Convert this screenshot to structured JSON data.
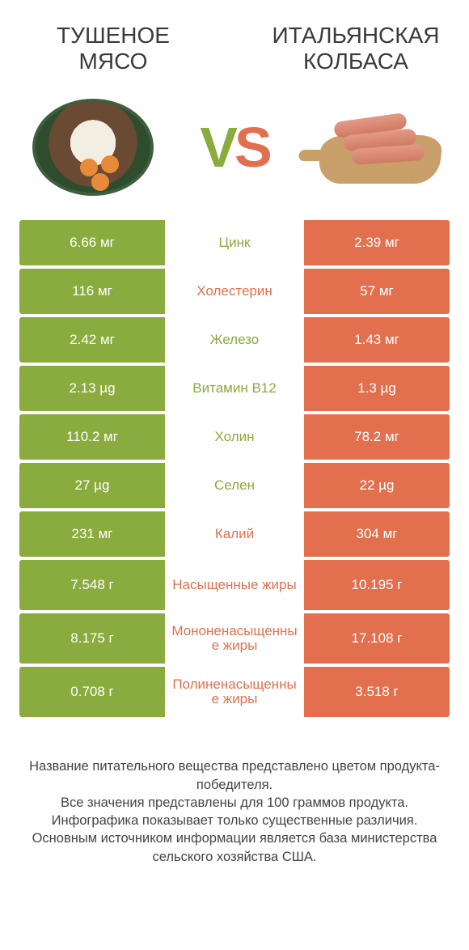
{
  "colors": {
    "left_bg": "#8aab3e",
    "right_bg": "#e2704f",
    "left_text": "#8aab3e",
    "right_text": "#e2704f",
    "cell_text": "#ffffff"
  },
  "header": {
    "left_title": "ТУШЕНОЕ МЯСО",
    "right_title": "ИТАЛЬЯНСКАЯ КОЛБАСА",
    "vs_v": "V",
    "vs_s": "S"
  },
  "rows": [
    {
      "left": "6.66 мг",
      "label": "Цинк",
      "right": "2.39 мг",
      "winner": "left",
      "tall": false
    },
    {
      "left": "116 мг",
      "label": "Холестерин",
      "right": "57 мг",
      "winner": "right",
      "tall": false
    },
    {
      "left": "2.42 мг",
      "label": "Железо",
      "right": "1.43 мг",
      "winner": "left",
      "tall": false
    },
    {
      "left": "2.13 µg",
      "label": "Витамин B12",
      "right": "1.3 µg",
      "winner": "left",
      "tall": false
    },
    {
      "left": "110.2 мг",
      "label": "Холин",
      "right": "78.2 мг",
      "winner": "left",
      "tall": false
    },
    {
      "left": "27 µg",
      "label": "Селен",
      "right": "22 µg",
      "winner": "left",
      "tall": false
    },
    {
      "left": "231 мг",
      "label": "Калий",
      "right": "304 мг",
      "winner": "right",
      "tall": false
    },
    {
      "left": "7.548 г",
      "label": "Насыщенные жиры",
      "right": "10.195 г",
      "winner": "right",
      "tall": true
    },
    {
      "left": "8.175 г",
      "label": "Мононенасыщенные жиры",
      "right": "17.108 г",
      "winner": "right",
      "tall": true
    },
    {
      "left": "0.708 г",
      "label": "Полиненасыщенные жиры",
      "right": "3.518 г",
      "winner": "right",
      "tall": true
    }
  ],
  "footer": {
    "line1": "Название питательного вещества представлено цветом продукта-победителя.",
    "line2": "Все значения представлены для 100 граммов продукта.",
    "line3": "Инфографика показывает только существенные различия.",
    "line4": "Основным источником информации является база министерства сельского хозяйства США."
  }
}
